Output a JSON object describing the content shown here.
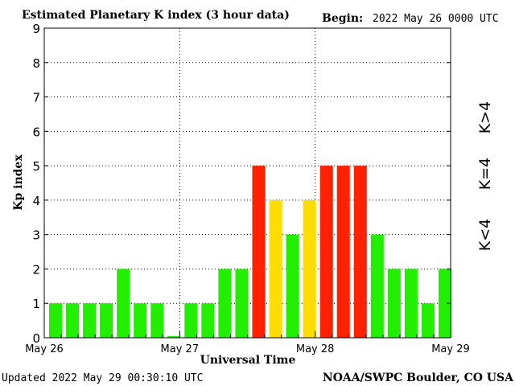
{
  "header": {
    "title": "Estimated Planetary K index (3 hour data)",
    "begin_label": "Begin:",
    "begin_value": "2022 May 26 0000 UTC"
  },
  "footer": {
    "updated": "Updated 2022 May 29 00:30:10 UTC",
    "source": "NOAA/SWPC Boulder, CO USA"
  },
  "legend": {
    "lt4": "K<4",
    "eq4": "K=4",
    "gt4": "K>4"
  },
  "colors": {
    "lt4": "#22ee00",
    "eq4": "#ffdd00",
    "gt4": "#ff2200",
    "lt4_text": "#33dd00",
    "eq4_text": "#ffcc00",
    "gt4_text": "#ff2200"
  },
  "chart_data": {
    "type": "bar",
    "title": "Estimated Planetary K index (3 hour data)",
    "xlabel": "Universal Time",
    "ylabel": "Kp index",
    "ylim": [
      0,
      9
    ],
    "yticks": [
      0,
      1,
      2,
      3,
      4,
      5,
      6,
      7,
      8,
      9
    ],
    "grid": "dotted",
    "xtick_labels": [
      "May 26",
      "May 27",
      "May 28",
      "May 29"
    ],
    "intervals_per_day": 8,
    "values": [
      1,
      1,
      1,
      1,
      2,
      1,
      1,
      0.05,
      1,
      1,
      2,
      2,
      5,
      4,
      3,
      4,
      5,
      5,
      5,
      3,
      2,
      2,
      1,
      2
    ]
  }
}
